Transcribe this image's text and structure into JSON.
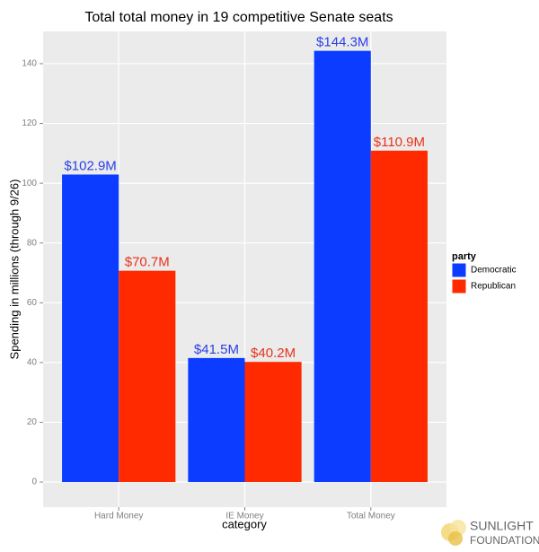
{
  "chart_data": {
    "type": "bar",
    "title": "Total total money in 19 competitive Senate seats",
    "x_label": "category",
    "y_label": "Spending in millions (through 9/26)",
    "categories": [
      "Hard Money",
      "IE Money",
      "Total Money"
    ],
    "legend_title": "party",
    "legend_position": "right",
    "grid": true,
    "series": [
      {
        "name": "Democratic",
        "color": "#0b3cff",
        "label_color": "#2a3fe8",
        "values": [
          102.9,
          41.5,
          144.3
        ],
        "value_labels": [
          "$102.9M",
          "$41.5M",
          "$144.3M"
        ]
      },
      {
        "name": "Republican",
        "color": "#ff2a00",
        "label_color": "#e8321a",
        "values": [
          70.7,
          40.2,
          110.9
        ],
        "value_labels": [
          "$70.7M",
          "$40.2M",
          "$110.9M"
        ]
      }
    ],
    "ylim": [
      -8.4,
      150.8
    ],
    "yticks": [
      0,
      20,
      40,
      60,
      80,
      100,
      120,
      140
    ]
  },
  "logo": {
    "line1": "SUNLIGHT",
    "line2": "FOUNDATION"
  }
}
